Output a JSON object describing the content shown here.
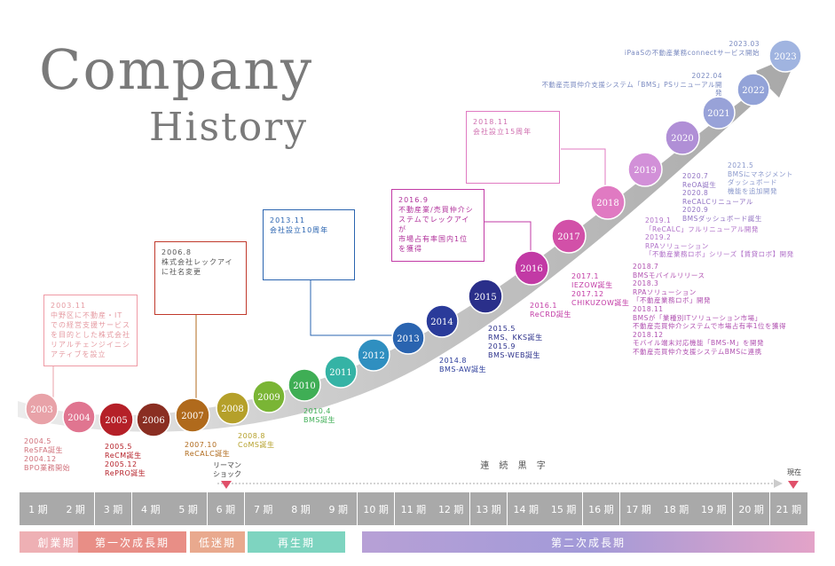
{
  "title": {
    "line1": "Company",
    "line2": "History"
  },
  "years": [
    {
      "label": "2003",
      "color": "#e8a2a8"
    },
    {
      "label": "2004",
      "color": "#e07590"
    },
    {
      "label": "2005",
      "color": "#b52028"
    },
    {
      "label": "2006",
      "color": "#8a2e22"
    },
    {
      "label": "2007",
      "color": "#b06a1c"
    },
    {
      "label": "2008",
      "color": "#b5a02a"
    },
    {
      "label": "2009",
      "color": "#7ab535"
    },
    {
      "label": "2010",
      "color": "#3fae55"
    },
    {
      "label": "2011",
      "color": "#35b3a5"
    },
    {
      "label": "2012",
      "color": "#2f8fc0"
    },
    {
      "label": "2013",
      "color": "#2a64b0"
    },
    {
      "label": "2014",
      "color": "#2a3b9a"
    },
    {
      "label": "2015",
      "color": "#2a2f8a"
    },
    {
      "label": "2016",
      "color": "#c23aa5"
    },
    {
      "label": "2017",
      "color": "#d250a8"
    },
    {
      "label": "2018",
      "color": "#e07ac2"
    },
    {
      "label": "2019",
      "color": "#d290d8"
    },
    {
      "label": "2020",
      "color": "#b08fd6"
    },
    {
      "label": "2021",
      "color": "#98a2d8"
    },
    {
      "label": "2022",
      "color": "#93a3d8"
    },
    {
      "label": "2023",
      "color": "#a0b4e0"
    }
  ],
  "callouts": [
    {
      "text": "2003.11\n中野区に不動産・IT\nでの経営支援サービス\nを目的とした株式会社\nリアルチェンジイニシ\nアティブを設立",
      "color": "#e8a2a8"
    },
    {
      "text": "2006.8\n株式会社レックアイ\nに社名変更",
      "color": "#c0392b"
    },
    {
      "text": "2013.11\n会社設立10周年",
      "color": "#2a64b0"
    },
    {
      "text": "2016.9\n不動産業/売買仲介シ\nステムでレックアイが\n市場占有率国内1位\nを獲得",
      "color": "#c23aa5"
    },
    {
      "text": "2018.11\n会社設立15周年",
      "color": "#e07ac2"
    }
  ],
  "notes": [
    {
      "text": "2004.5\nReSFA誕生\n2004.12\nBPO業務開始",
      "color": "#d0707a"
    },
    {
      "text": "2005.5\nReCM誕生\n2005.12\nRePRO誕生",
      "color": "#b52028"
    },
    {
      "text": "2007.10\nReCALC誕生",
      "color": "#b06a1c"
    },
    {
      "text": "2008.8\nCoMS誕生",
      "color": "#b5a02a"
    },
    {
      "text": "2010.4\nBMS誕生",
      "color": "#3fae55"
    },
    {
      "text": "2014.8\nBMS-AW誕生",
      "color": "#2a3b9a"
    },
    {
      "text": "2015.5\nRMS、KKS誕生\n2015.9\nBMS-WEB誕生",
      "color": "#2a2f8a"
    },
    {
      "text": "2016.1\nReCRD誕生",
      "color": "#c23aa5"
    },
    {
      "text": "2017.1\nIEZOW誕生\n2017.12\nCHIKUZOW誕生",
      "color": "#c23aa5"
    },
    {
      "text": "2018.7\nBMSモバイルリリース\n2018.3\nRPAソリューション\n「不動産業務ロボ」開発\n2018.11\nBMSが「業種別ITソリューション市場」\n不動産売買仲介システムで市場占有率1位を獲得\n2018.12\nモバイル端末対応機能「BMS-M」を開発\n不動産売買仲介支援システムBMSに連携",
      "color": "#c23aa5"
    },
    {
      "text": "2019.1\n「ReCALC」フルリニューアル開発\n2019.2\nRPAソリューション\n「不動産業務ロボ」シリーズ【賃貸ロボ】開発",
      "color": "#b070c8"
    },
    {
      "text": "2020.7\nReOA誕生\n2020.8\nReCALCリニューアル\n2020.9\nBMSダッシュボード誕生",
      "color": "#9a7ac8"
    },
    {
      "text": "2021.5\nBMSにマネジメント\nダッシュボード\n機能を追加開発",
      "color": "#8a98cc"
    },
    {
      "text": "2022.04\n不動産売買仲介支援システム「BMS」PSリニューアル開発",
      "color": "#7a8ac0"
    },
    {
      "text": "2023.03\niPaaSの不動産業務connectサービス開始",
      "color": "#7a8ac0"
    }
  ],
  "markers": {
    "lehman": "リーマン\nショック",
    "streak": "連 続 黒 字",
    "now": "現在"
  },
  "periods": [
    "1 期",
    "2 期",
    "3 期",
    "4 期",
    "5 期",
    "6 期",
    "7 期",
    "8 期",
    "9 期",
    "10 期",
    "11 期",
    "12 期",
    "13 期",
    "14 期",
    "15 期",
    "16 期",
    "17 期",
    "18 期",
    "19 期",
    "20 期",
    "21 期"
  ],
  "phases": [
    {
      "label": "創業期",
      "color": "#eeb0b4"
    },
    {
      "label": "第一次成長期",
      "color": "#e88e86"
    },
    {
      "label": "低迷期",
      "color": "#e9a98e"
    },
    {
      "label": "再生期",
      "color": "#7ed4c0"
    },
    {
      "label": "第二次成長期",
      "color": "#b7a0d6"
    }
  ]
}
